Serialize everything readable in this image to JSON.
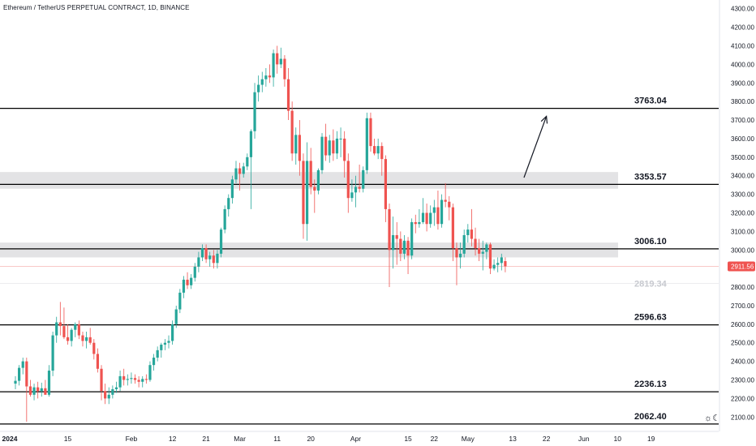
{
  "header": {
    "title": "Ethereum / TetherUS PERPETUAL CONTRACT, 1D, BINANCE"
  },
  "colors": {
    "up": "#26a69a",
    "down": "#ef5350",
    "level": "#000000",
    "zone": "#e3e3e5",
    "price_tag": "#ef5350",
    "ghost": "#c7c9cf"
  },
  "icons": {
    "theme": "sun-moon-icon"
  },
  "chart_data": {
    "type": "candlestick",
    "title": "Ethereum / TetherUS PERPETUAL CONTRACT, 1D, BINANCE",
    "ylim": [
      2075,
      4325
    ],
    "y_ticks": [
      "4300.00",
      "4200.00",
      "4100.00",
      "4000.00",
      "3900.00",
      "3800.00",
      "3700.00",
      "3600.00",
      "3500.00",
      "3400.00",
      "3300.00",
      "3200.00",
      "3100.00",
      "3000.00",
      "2900.00",
      "2800.00",
      "2700.00",
      "2600.00",
      "2500.00",
      "2400.00",
      "2300.00",
      "2200.00",
      "2100.00"
    ],
    "x_ticks": [
      {
        "label": "2024",
        "day": 0,
        "bold": true
      },
      {
        "label": "15",
        "day": 14
      },
      {
        "label": "Feb",
        "day": 31
      },
      {
        "label": "12",
        "day": 42
      },
      {
        "label": "21",
        "day": 51
      },
      {
        "label": "Mar",
        "day": 60
      },
      {
        "label": "11",
        "day": 70
      },
      {
        "label": "20",
        "day": 79
      },
      {
        "label": "Apr",
        "day": 91
      },
      {
        "label": "15",
        "day": 105
      },
      {
        "label": "22",
        "day": 112
      },
      {
        "label": "May",
        "day": 121
      },
      {
        "label": "13",
        "day": 133
      },
      {
        "label": "22",
        "day": 142
      },
      {
        "label": "Jun",
        "day": 152
      },
      {
        "label": "10",
        "day": 161
      },
      {
        "label": "19",
        "day": 170
      }
    ],
    "levels": [
      {
        "value": 3763.04,
        "label": "3763.04"
      },
      {
        "value": 3353.57,
        "label": "3353.57"
      },
      {
        "value": 3006.1,
        "label": "3006.10"
      },
      {
        "value": 2596.63,
        "label": "2596.63"
      },
      {
        "value": 2236.13,
        "label": "2236.13"
      },
      {
        "value": 2062.4,
        "label": "2062.40"
      }
    ],
    "zones": [
      {
        "from": 3330,
        "to": 3420
      },
      {
        "from": 2960,
        "to": 3040
      }
    ],
    "current_price": {
      "value": 2911.56,
      "label": "2911.56"
    },
    "ghost_level": {
      "value": 2819.34,
      "label": "2819.34"
    },
    "arrow": {
      "from": {
        "day": 136,
        "price": 3390
      },
      "to": {
        "day": 142,
        "price": 3720
      }
    },
    "candles": [
      {
        "o": 2280,
        "h": 2320,
        "l": 2250,
        "c": 2295
      },
      {
        "o": 2295,
        "h": 2380,
        "l": 2270,
        "c": 2365
      },
      {
        "o": 2365,
        "h": 2420,
        "l": 2330,
        "c": 2400
      },
      {
        "o": 2400,
        "h": 2420,
        "l": 2075,
        "c": 2265
      },
      {
        "o": 2265,
        "h": 2300,
        "l": 2210,
        "c": 2220
      },
      {
        "o": 2220,
        "h": 2280,
        "l": 2190,
        "c": 2260
      },
      {
        "o": 2260,
        "h": 2290,
        "l": 2200,
        "c": 2240
      },
      {
        "o": 2240,
        "h": 2285,
        "l": 2210,
        "c": 2255
      },
      {
        "o": 2255,
        "h": 2300,
        "l": 2220,
        "c": 2220
      },
      {
        "o": 2220,
        "h": 2380,
        "l": 2210,
        "c": 2350
      },
      {
        "o": 2350,
        "h": 2560,
        "l": 2320,
        "c": 2540
      },
      {
        "o": 2540,
        "h": 2640,
        "l": 2500,
        "c": 2610
      },
      {
        "o": 2610,
        "h": 2720,
        "l": 2540,
        "c": 2590
      },
      {
        "o": 2590,
        "h": 2690,
        "l": 2520,
        "c": 2530
      },
      {
        "o": 2530,
        "h": 2600,
        "l": 2490,
        "c": 2510
      },
      {
        "o": 2510,
        "h": 2580,
        "l": 2480,
        "c": 2570
      },
      {
        "o": 2570,
        "h": 2610,
        "l": 2530,
        "c": 2600
      },
      {
        "o": 2600,
        "h": 2620,
        "l": 2520,
        "c": 2540
      },
      {
        "o": 2540,
        "h": 2560,
        "l": 2480,
        "c": 2510
      },
      {
        "o": 2510,
        "h": 2560,
        "l": 2470,
        "c": 2530
      },
      {
        "o": 2530,
        "h": 2580,
        "l": 2490,
        "c": 2500
      },
      {
        "o": 2500,
        "h": 2520,
        "l": 2410,
        "c": 2440
      },
      {
        "o": 2440,
        "h": 2470,
        "l": 2340,
        "c": 2360
      },
      {
        "o": 2360,
        "h": 2380,
        "l": 2190,
        "c": 2240
      },
      {
        "o": 2240,
        "h": 2280,
        "l": 2170,
        "c": 2200
      },
      {
        "o": 2200,
        "h": 2260,
        "l": 2170,
        "c": 2220
      },
      {
        "o": 2220,
        "h": 2270,
        "l": 2200,
        "c": 2250
      },
      {
        "o": 2250,
        "h": 2290,
        "l": 2230,
        "c": 2260
      },
      {
        "o": 2260,
        "h": 2350,
        "l": 2240,
        "c": 2320
      },
      {
        "o": 2320,
        "h": 2360,
        "l": 2270,
        "c": 2300
      },
      {
        "o": 2300,
        "h": 2330,
        "l": 2270,
        "c": 2305
      },
      {
        "o": 2305,
        "h": 2340,
        "l": 2280,
        "c": 2310
      },
      {
        "o": 2310,
        "h": 2330,
        "l": 2280,
        "c": 2300
      },
      {
        "o": 2300,
        "h": 2320,
        "l": 2260,
        "c": 2290
      },
      {
        "o": 2290,
        "h": 2320,
        "l": 2260,
        "c": 2305
      },
      {
        "o": 2305,
        "h": 2330,
        "l": 2280,
        "c": 2300
      },
      {
        "o": 2300,
        "h": 2400,
        "l": 2290,
        "c": 2380
      },
      {
        "o": 2380,
        "h": 2440,
        "l": 2350,
        "c": 2420
      },
      {
        "o": 2420,
        "h": 2480,
        "l": 2400,
        "c": 2460
      },
      {
        "o": 2460,
        "h": 2500,
        "l": 2420,
        "c": 2490
      },
      {
        "o": 2490,
        "h": 2520,
        "l": 2460,
        "c": 2500
      },
      {
        "o": 2500,
        "h": 2540,
        "l": 2470,
        "c": 2510
      },
      {
        "o": 2510,
        "h": 2620,
        "l": 2490,
        "c": 2600
      },
      {
        "o": 2600,
        "h": 2700,
        "l": 2580,
        "c": 2680
      },
      {
        "o": 2680,
        "h": 2790,
        "l": 2660,
        "c": 2770
      },
      {
        "o": 2770,
        "h": 2860,
        "l": 2740,
        "c": 2840
      },
      {
        "o": 2840,
        "h": 2880,
        "l": 2790,
        "c": 2810
      },
      {
        "o": 2810,
        "h": 2870,
        "l": 2790,
        "c": 2850
      },
      {
        "o": 2850,
        "h": 2930,
        "l": 2830,
        "c": 2910
      },
      {
        "o": 2910,
        "h": 2990,
        "l": 2880,
        "c": 2960
      },
      {
        "o": 2960,
        "h": 3030,
        "l": 2940,
        "c": 3010
      },
      {
        "o": 3010,
        "h": 3030,
        "l": 2930,
        "c": 2950
      },
      {
        "o": 2950,
        "h": 2990,
        "l": 2910,
        "c": 2970
      },
      {
        "o": 2970,
        "h": 3000,
        "l": 2900,
        "c": 2930
      },
      {
        "o": 2930,
        "h": 3000,
        "l": 2900,
        "c": 2980
      },
      {
        "o": 2980,
        "h": 3120,
        "l": 2960,
        "c": 3110
      },
      {
        "o": 3110,
        "h": 3240,
        "l": 3090,
        "c": 3220
      },
      {
        "o": 3220,
        "h": 3300,
        "l": 3180,
        "c": 3280
      },
      {
        "o": 3280,
        "h": 3400,
        "l": 3250,
        "c": 3380
      },
      {
        "o": 3380,
        "h": 3480,
        "l": 3360,
        "c": 3440
      },
      {
        "o": 3440,
        "h": 3470,
        "l": 3320,
        "c": 3410
      },
      {
        "o": 3410,
        "h": 3470,
        "l": 3390,
        "c": 3450
      },
      {
        "o": 3450,
        "h": 3520,
        "l": 3430,
        "c": 3500
      },
      {
        "o": 3500,
        "h": 3650,
        "l": 3220,
        "c": 3640
      },
      {
        "o": 3640,
        "h": 3900,
        "l": 3600,
        "c": 3850
      },
      {
        "o": 3850,
        "h": 3940,
        "l": 3800,
        "c": 3890
      },
      {
        "o": 3890,
        "h": 3960,
        "l": 3850,
        "c": 3920
      },
      {
        "o": 3920,
        "h": 3980,
        "l": 3880,
        "c": 3940
      },
      {
        "o": 3940,
        "h": 4000,
        "l": 3900,
        "c": 3930
      },
      {
        "o": 3930,
        "h": 4080,
        "l": 3880,
        "c": 4060
      },
      {
        "o": 4060,
        "h": 4100,
        "l": 3950,
        "c": 4000
      },
      {
        "o": 4000,
        "h": 4090,
        "l": 3980,
        "c": 4030
      },
      {
        "o": 4030,
        "h": 4050,
        "l": 3880,
        "c": 3920
      },
      {
        "o": 3920,
        "h": 3980,
        "l": 3700,
        "c": 3750
      },
      {
        "o": 3750,
        "h": 3800,
        "l": 3480,
        "c": 3520
      },
      {
        "o": 3520,
        "h": 3660,
        "l": 3460,
        "c": 3620
      },
      {
        "o": 3620,
        "h": 3700,
        "l": 3400,
        "c": 3480
      },
      {
        "o": 3480,
        "h": 3520,
        "l": 3060,
        "c": 3140
      },
      {
        "o": 3140,
        "h": 3580,
        "l": 3050,
        "c": 3480
      },
      {
        "o": 3480,
        "h": 3550,
        "l": 3300,
        "c": 3340
      },
      {
        "o": 3340,
        "h": 3380,
        "l": 3200,
        "c": 3320
      },
      {
        "o": 3320,
        "h": 3440,
        "l": 3300,
        "c": 3430
      },
      {
        "o": 3430,
        "h": 3630,
        "l": 3410,
        "c": 3610
      },
      {
        "o": 3610,
        "h": 3680,
        "l": 3480,
        "c": 3510
      },
      {
        "o": 3510,
        "h": 3620,
        "l": 3470,
        "c": 3590
      },
      {
        "o": 3590,
        "h": 3650,
        "l": 3480,
        "c": 3520
      },
      {
        "o": 3520,
        "h": 3640,
        "l": 3490,
        "c": 3600
      },
      {
        "o": 3600,
        "h": 3660,
        "l": 3500,
        "c": 3600
      },
      {
        "o": 3600,
        "h": 3640,
        "l": 3390,
        "c": 3480
      },
      {
        "o": 3480,
        "h": 3520,
        "l": 3200,
        "c": 3280
      },
      {
        "o": 3280,
        "h": 3380,
        "l": 3260,
        "c": 3310
      },
      {
        "o": 3310,
        "h": 3400,
        "l": 3230,
        "c": 3340
      },
      {
        "o": 3340,
        "h": 3460,
        "l": 3310,
        "c": 3330
      },
      {
        "o": 3330,
        "h": 3450,
        "l": 3310,
        "c": 3430
      },
      {
        "o": 3430,
        "h": 3740,
        "l": 3410,
        "c": 3710
      },
      {
        "o": 3710,
        "h": 3740,
        "l": 3530,
        "c": 3560
      },
      {
        "o": 3560,
        "h": 3600,
        "l": 3510,
        "c": 3520
      },
      {
        "o": 3520,
        "h": 3600,
        "l": 3490,
        "c": 3560
      },
      {
        "o": 3560,
        "h": 3580,
        "l": 3400,
        "c": 3490
      },
      {
        "o": 3490,
        "h": 3510,
        "l": 3150,
        "c": 3220
      },
      {
        "o": 3220,
        "h": 3250,
        "l": 2800,
        "c": 3000
      },
      {
        "o": 3000,
        "h": 3180,
        "l": 2900,
        "c": 3080
      },
      {
        "o": 3080,
        "h": 3150,
        "l": 2920,
        "c": 3060
      },
      {
        "o": 3060,
        "h": 3100,
        "l": 2940,
        "c": 2980
      },
      {
        "o": 2980,
        "h": 3080,
        "l": 2950,
        "c": 3050
      },
      {
        "o": 3050,
        "h": 3070,
        "l": 2870,
        "c": 2970
      },
      {
        "o": 2970,
        "h": 3170,
        "l": 2950,
        "c": 3150
      },
      {
        "o": 3150,
        "h": 3190,
        "l": 3090,
        "c": 3140
      },
      {
        "o": 3140,
        "h": 3220,
        "l": 3120,
        "c": 3150
      },
      {
        "o": 3150,
        "h": 3280,
        "l": 3140,
        "c": 3200
      },
      {
        "o": 3200,
        "h": 3250,
        "l": 3100,
        "c": 3140
      },
      {
        "o": 3140,
        "h": 3240,
        "l": 3120,
        "c": 3200
      },
      {
        "o": 3200,
        "h": 3270,
        "l": 3130,
        "c": 3230
      },
      {
        "o": 3230,
        "h": 3320,
        "l": 3110,
        "c": 3140
      },
      {
        "o": 3140,
        "h": 3300,
        "l": 3120,
        "c": 3270
      },
      {
        "o": 3270,
        "h": 3360,
        "l": 3230,
        "c": 3260
      },
      {
        "o": 3260,
        "h": 3290,
        "l": 3160,
        "c": 3230
      },
      {
        "o": 3230,
        "h": 3250,
        "l": 2940,
        "c": 3010
      },
      {
        "o": 3010,
        "h": 3040,
        "l": 2810,
        "c": 2960
      },
      {
        "o": 2960,
        "h": 3040,
        "l": 2900,
        "c": 2980
      },
      {
        "o": 2980,
        "h": 3110,
        "l": 2960,
        "c": 3080
      },
      {
        "o": 3080,
        "h": 3140,
        "l": 3040,
        "c": 3110
      },
      {
        "o": 3110,
        "h": 3220,
        "l": 3020,
        "c": 3060
      },
      {
        "o": 3060,
        "h": 3120,
        "l": 2970,
        "c": 3010
      },
      {
        "o": 3010,
        "h": 3060,
        "l": 2940,
        "c": 2980
      },
      {
        "o": 2980,
        "h": 3050,
        "l": 2890,
        "c": 2990
      },
      {
        "o": 2990,
        "h": 3040,
        "l": 2950,
        "c": 3030
      },
      {
        "o": 3030,
        "h": 3040,
        "l": 2870,
        "c": 2900
      },
      {
        "o": 2900,
        "h": 2950,
        "l": 2890,
        "c": 2920
      },
      {
        "o": 2920,
        "h": 2960,
        "l": 2880,
        "c": 2930
      },
      {
        "o": 2930,
        "h": 2980,
        "l": 2890,
        "c": 2960
      },
      {
        "o": 2940,
        "h": 2960,
        "l": 2880,
        "c": 2912
      }
    ]
  }
}
